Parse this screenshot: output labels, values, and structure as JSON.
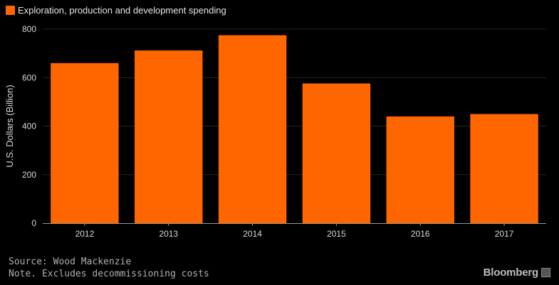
{
  "chart_data": {
    "type": "bar",
    "legend": [
      "Exploration, production and development spending"
    ],
    "ylabel": "U.S. Dollars (Billion)",
    "xlabel": "",
    "categories": [
      "2012",
      "2013",
      "2014",
      "2015",
      "2016",
      "2017"
    ],
    "series": [
      {
        "name": "Exploration, production and development spending",
        "values": [
          660,
          712,
          775,
          576,
          440,
          450
        ]
      }
    ],
    "ylim": [
      0,
      800
    ],
    "yticks": [
      0,
      200,
      400,
      600,
      800
    ],
    "grid": true,
    "legend_position": "top-left",
    "colors": {
      "bar": "#ff6600",
      "background": "#000000",
      "grid": "#262626",
      "text": "#d8d8d8"
    }
  },
  "footer": {
    "source": "Source: Wood Mackenzie",
    "note": "Note. Excludes decommissioning costs"
  },
  "brand": {
    "name": "Bloomberg"
  }
}
